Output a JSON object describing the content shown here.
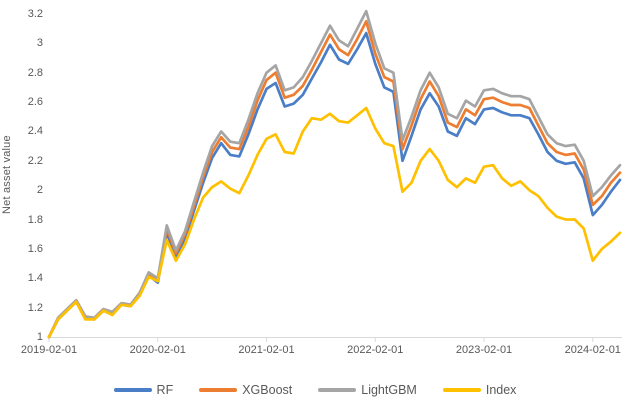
{
  "chart_data": {
    "type": "line",
    "title": "",
    "xlabel": "",
    "ylabel": "Net asset value",
    "x_start": "2019-02",
    "x_interval": "monthly",
    "ylim": [
      1,
      3.2
    ],
    "grid": false,
    "legend_position": "bottom",
    "axis_color": "#D9D9D9",
    "text_color": "#595959",
    "y_ticks": [
      {
        "label": "3.2",
        "value": 3.2
      },
      {
        "label": "3",
        "value": 3.0
      },
      {
        "label": "2.8",
        "value": 2.8
      },
      {
        "label": "2.6",
        "value": 2.6
      },
      {
        "label": "2.4",
        "value": 2.4
      },
      {
        "label": "2.2",
        "value": 2.2
      },
      {
        "label": "2",
        "value": 2.0
      },
      {
        "label": "1.8",
        "value": 1.8
      },
      {
        "label": "1.6",
        "value": 1.6
      },
      {
        "label": "1.4",
        "value": 1.4
      },
      {
        "label": "1.2",
        "value": 1.2
      },
      {
        "label": "1",
        "value": 1.0
      }
    ],
    "x_ticks": [
      {
        "label": "2019-02-01",
        "month": 0
      },
      {
        "label": "2020-02-01",
        "month": 12
      },
      {
        "label": "2021-02-01",
        "month": 24
      },
      {
        "label": "2022-02-01",
        "month": 36
      },
      {
        "label": "2023-02-01",
        "month": 48
      },
      {
        "label": "2024-02-01",
        "month": 60
      }
    ],
    "series": [
      {
        "name": "RF",
        "color": "#4A7EC7",
        "values": [
          1.0,
          1.12,
          1.18,
          1.24,
          1.13,
          1.12,
          1.18,
          1.16,
          1.22,
          1.21,
          1.29,
          1.42,
          1.37,
          1.71,
          1.55,
          1.67,
          1.86,
          2.05,
          2.22,
          2.32,
          2.24,
          2.23,
          2.38,
          2.55,
          2.69,
          2.73,
          2.57,
          2.59,
          2.65,
          2.76,
          2.87,
          2.99,
          2.89,
          2.86,
          2.96,
          3.07,
          2.86,
          2.7,
          2.67,
          2.2,
          2.37,
          2.55,
          2.66,
          2.57,
          2.4,
          2.37,
          2.49,
          2.45,
          2.55,
          2.56,
          2.53,
          2.51,
          2.51,
          2.49,
          2.38,
          2.26,
          2.2,
          2.18,
          2.19,
          2.08,
          1.83,
          1.9,
          1.99,
          2.07
        ]
      },
      {
        "name": "XGBoost",
        "color": "#ED7D31",
        "values": [
          1.0,
          1.13,
          1.19,
          1.25,
          1.14,
          1.13,
          1.19,
          1.17,
          1.23,
          1.22,
          1.3,
          1.43,
          1.39,
          1.74,
          1.57,
          1.7,
          1.89,
          2.09,
          2.26,
          2.36,
          2.29,
          2.28,
          2.43,
          2.61,
          2.75,
          2.8,
          2.63,
          2.65,
          2.71,
          2.82,
          2.94,
          3.06,
          2.96,
          2.92,
          3.03,
          3.15,
          2.93,
          2.77,
          2.74,
          2.28,
          2.44,
          2.62,
          2.74,
          2.64,
          2.46,
          2.43,
          2.55,
          2.51,
          2.62,
          2.63,
          2.6,
          2.58,
          2.58,
          2.56,
          2.44,
          2.32,
          2.26,
          2.24,
          2.25,
          2.14,
          1.9,
          1.96,
          2.05,
          2.12
        ]
      },
      {
        "name": "LightGBM",
        "color": "#A5A5A5",
        "values": [
          1.0,
          1.13,
          1.19,
          1.25,
          1.14,
          1.13,
          1.19,
          1.17,
          1.23,
          1.22,
          1.3,
          1.44,
          1.4,
          1.76,
          1.59,
          1.72,
          1.92,
          2.12,
          2.3,
          2.4,
          2.33,
          2.32,
          2.48,
          2.66,
          2.8,
          2.85,
          2.68,
          2.7,
          2.77,
          2.88,
          3.0,
          3.12,
          3.02,
          2.98,
          3.1,
          3.22,
          3.0,
          2.83,
          2.8,
          2.34,
          2.5,
          2.68,
          2.8,
          2.7,
          2.52,
          2.49,
          2.61,
          2.57,
          2.68,
          2.69,
          2.66,
          2.64,
          2.64,
          2.62,
          2.5,
          2.38,
          2.32,
          2.3,
          2.31,
          2.2,
          1.96,
          2.02,
          2.1,
          2.17
        ]
      },
      {
        "name": "Index",
        "color": "#FFC000",
        "values": [
          1.0,
          1.12,
          1.18,
          1.24,
          1.12,
          1.12,
          1.18,
          1.15,
          1.22,
          1.21,
          1.28,
          1.41,
          1.38,
          1.66,
          1.52,
          1.63,
          1.8,
          1.95,
          2.02,
          2.06,
          2.01,
          1.98,
          2.1,
          2.24,
          2.35,
          2.38,
          2.26,
          2.25,
          2.4,
          2.49,
          2.48,
          2.52,
          2.47,
          2.46,
          2.51,
          2.56,
          2.42,
          2.32,
          2.3,
          1.99,
          2.05,
          2.2,
          2.28,
          2.2,
          2.07,
          2.02,
          2.08,
          2.05,
          2.16,
          2.17,
          2.08,
          2.03,
          2.06,
          2.0,
          1.96,
          1.88,
          1.82,
          1.8,
          1.8,
          1.74,
          1.52,
          1.6,
          1.65,
          1.71
        ]
      }
    ]
  }
}
